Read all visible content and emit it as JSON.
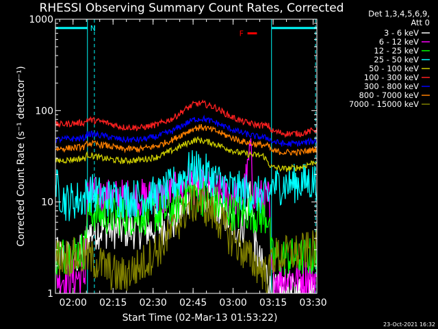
{
  "chart_data": {
    "type": "line",
    "title": "RHESSI Observing Summary Count Rates, Corrected",
    "xlabel": "Start Time (02-Mar-13 01:53:22)",
    "ylabel": "Corrected Count Rate (s⁻¹ detector⁻¹)",
    "y_scale": "log",
    "ylim": [
      1,
      1000
    ],
    "xlim_minutes": [
      0,
      98
    ],
    "x_tick_labels": [
      "02:00",
      "02:15",
      "02:30",
      "02:45",
      "03:00",
      "03:15",
      "03:30"
    ],
    "x_tick_minutes": [
      6.6,
      21.6,
      36.6,
      51.6,
      66.6,
      81.6,
      96.6
    ],
    "y_tick_labels": [
      "1",
      "10",
      "100",
      "1000"
    ],
    "y_tick_values": [
      1,
      10,
      100,
      1000
    ],
    "legend_header": [
      "Det 1,3,4,5,6,9,",
      "Att 0"
    ],
    "legend_placement": "right",
    "date_stamp": "23-Oct-2021 16:32",
    "annotations": {
      "night_marker": "N",
      "flare_marker": "F",
      "night_intervals": [
        [
          0,
          12
        ],
        [
          81,
          98
        ]
      ],
      "night_level": 800,
      "flare_interval": [
        72,
        74
      ],
      "flare_level": 700
    },
    "series": [
      {
        "name": "3 - 6 keV",
        "color": "#ffffff",
        "points": [
          [
            0,
            2.5
          ],
          [
            5,
            2.5
          ],
          [
            8,
            2.5
          ],
          [
            11,
            3
          ],
          [
            12,
            4.5
          ],
          [
            16,
            5
          ],
          [
            20,
            5
          ],
          [
            25,
            5
          ],
          [
            30,
            5
          ],
          [
            35,
            5
          ],
          [
            40,
            5.5
          ],
          [
            44,
            6
          ],
          [
            47,
            8
          ],
          [
            50,
            12
          ],
          [
            52,
            15
          ],
          [
            55,
            12
          ],
          [
            58,
            10
          ],
          [
            62,
            8
          ],
          [
            66,
            6
          ],
          [
            69,
            5
          ],
          [
            71,
            6
          ],
          [
            73,
            15
          ],
          [
            75,
            3
          ],
          [
            77,
            2
          ],
          [
            80,
            1.5
          ],
          [
            81,
            1
          ],
          [
            98,
            1
          ]
        ]
      },
      {
        "name": "6 - 12 keV",
        "color": "#ff00ff",
        "points": [
          [
            0,
            1.5
          ],
          [
            11,
            1.5
          ],
          [
            12,
            12
          ],
          [
            20,
            11
          ],
          [
            30,
            11
          ],
          [
            40,
            11
          ],
          [
            45,
            13
          ],
          [
            50,
            16
          ],
          [
            55,
            14
          ],
          [
            60,
            13
          ],
          [
            65,
            12
          ],
          [
            70,
            11
          ],
          [
            72,
            20
          ],
          [
            73,
            40
          ],
          [
            74,
            14
          ],
          [
            76,
            11
          ],
          [
            80,
            11
          ],
          [
            81,
            1.5
          ],
          [
            98,
            1.5
          ]
        ]
      },
      {
        "name": "12 - 25 keV",
        "color": "#00ff00",
        "points": [
          [
            0,
            2.5
          ],
          [
            11,
            3
          ],
          [
            12,
            8
          ],
          [
            20,
            7
          ],
          [
            30,
            7
          ],
          [
            40,
            7.5
          ],
          [
            45,
            9
          ],
          [
            50,
            13
          ],
          [
            54,
            12
          ],
          [
            58,
            10
          ],
          [
            62,
            9
          ],
          [
            66,
            8
          ],
          [
            70,
            7.5
          ],
          [
            73,
            8
          ],
          [
            76,
            7
          ],
          [
            80,
            7
          ],
          [
            81,
            2.5
          ],
          [
            98,
            2.5
          ]
        ]
      },
      {
        "name": "25 - 50 keV",
        "color": "#00ffff",
        "points": [
          [
            0,
            15
          ],
          [
            4,
            10
          ],
          [
            11,
            11
          ],
          [
            12,
            13
          ],
          [
            20,
            11
          ],
          [
            30,
            11
          ],
          [
            40,
            12
          ],
          [
            45,
            16
          ],
          [
            50,
            22
          ],
          [
            53,
            23
          ],
          [
            57,
            20
          ],
          [
            62,
            16
          ],
          [
            66,
            14
          ],
          [
            70,
            13
          ],
          [
            75,
            12
          ],
          [
            80,
            11
          ],
          [
            81,
            15
          ],
          [
            98,
            17
          ]
        ]
      },
      {
        "name": "50 - 100 keV",
        "color": "#cccc00",
        "points": [
          [
            0,
            28
          ],
          [
            11,
            30
          ],
          [
            12,
            33
          ],
          [
            18,
            30
          ],
          [
            25,
            28
          ],
          [
            32,
            29
          ],
          [
            38,
            31
          ],
          [
            45,
            38
          ],
          [
            50,
            45
          ],
          [
            53,
            48
          ],
          [
            58,
            45
          ],
          [
            63,
            40
          ],
          [
            68,
            35
          ],
          [
            73,
            33
          ],
          [
            78,
            32
          ],
          [
            81,
            24
          ],
          [
            86,
            23
          ],
          [
            92,
            24
          ],
          [
            98,
            28
          ]
        ]
      },
      {
        "name": "100 - 300 keV",
        "color": "#ff2020",
        "points": [
          [
            0,
            70
          ],
          [
            11,
            74
          ],
          [
            12,
            80
          ],
          [
            18,
            75
          ],
          [
            25,
            66
          ],
          [
            32,
            65
          ],
          [
            38,
            70
          ],
          [
            44,
            82
          ],
          [
            48,
            100
          ],
          [
            52,
            118
          ],
          [
            55,
            120
          ],
          [
            60,
            108
          ],
          [
            65,
            88
          ],
          [
            70,
            76
          ],
          [
            75,
            70
          ],
          [
            80,
            68
          ],
          [
            81,
            60
          ],
          [
            86,
            56
          ],
          [
            92,
            56
          ],
          [
            98,
            62
          ]
        ]
      },
      {
        "name": "300 - 800 keV",
        "color": "#0000ff",
        "points": [
          [
            0,
            48
          ],
          [
            11,
            50
          ],
          [
            12,
            56
          ],
          [
            18,
            53
          ],
          [
            25,
            48
          ],
          [
            32,
            48
          ],
          [
            38,
            52
          ],
          [
            44,
            60
          ],
          [
            48,
            70
          ],
          [
            52,
            80
          ],
          [
            55,
            82
          ],
          [
            60,
            74
          ],
          [
            65,
            64
          ],
          [
            70,
            57
          ],
          [
            75,
            52
          ],
          [
            80,
            50
          ],
          [
            81,
            46
          ],
          [
            86,
            43
          ],
          [
            92,
            44
          ],
          [
            98,
            47
          ]
        ]
      },
      {
        "name": "800 - 7000 keV",
        "color": "#ff8000",
        "points": [
          [
            0,
            38
          ],
          [
            11,
            40
          ],
          [
            12,
            44
          ],
          [
            18,
            42
          ],
          [
            25,
            38
          ],
          [
            32,
            38
          ],
          [
            38,
            41
          ],
          [
            44,
            48
          ],
          [
            48,
            56
          ],
          [
            52,
            64
          ],
          [
            55,
            66
          ],
          [
            60,
            60
          ],
          [
            65,
            52
          ],
          [
            70,
            46
          ],
          [
            75,
            43
          ],
          [
            80,
            41
          ],
          [
            81,
            36
          ],
          [
            86,
            35
          ],
          [
            92,
            35
          ],
          [
            98,
            38
          ]
        ]
      },
      {
        "name": "7000 - 15000 keV",
        "color": "#808000",
        "points": [
          [
            0,
            2.5
          ],
          [
            11,
            2.5
          ],
          [
            12,
            2.5
          ],
          [
            18,
            2
          ],
          [
            24,
            1.5
          ],
          [
            32,
            2
          ],
          [
            38,
            3
          ],
          [
            42,
            4
          ],
          [
            46,
            6
          ],
          [
            50,
            9
          ],
          [
            54,
            10
          ],
          [
            58,
            8
          ],
          [
            62,
            6
          ],
          [
            66,
            4
          ],
          [
            70,
            3
          ],
          [
            72,
            2.5
          ],
          [
            76,
            2
          ],
          [
            80,
            1.5
          ],
          [
            81,
            2.5
          ],
          [
            98,
            3
          ]
        ]
      }
    ]
  }
}
